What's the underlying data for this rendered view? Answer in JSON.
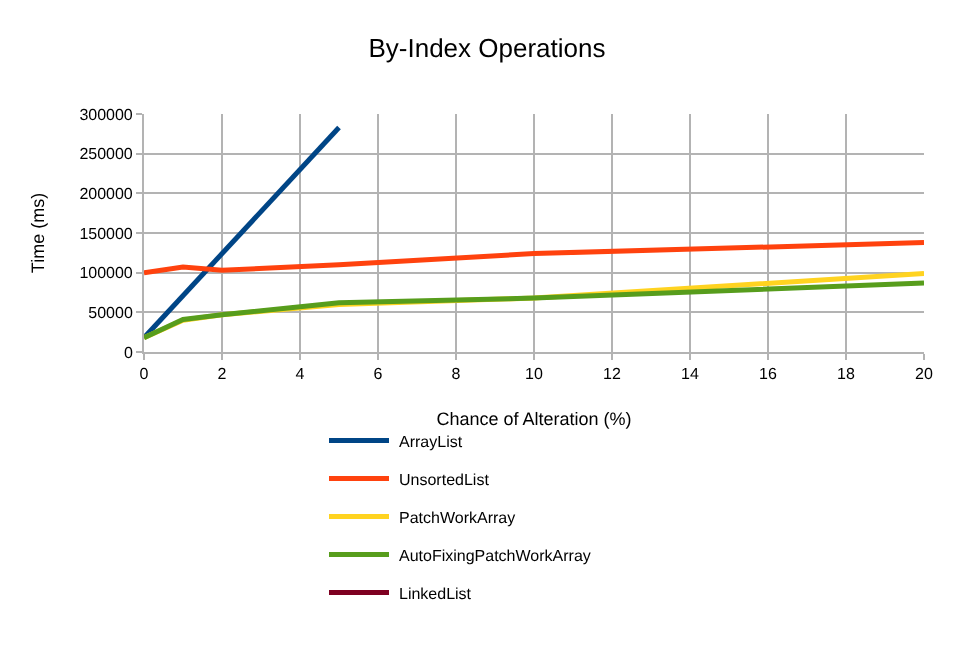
{
  "chart_data": {
    "type": "line",
    "title": "By-Index Operations",
    "xlabel": "Chance of Alteration (%)",
    "ylabel": "Time (ms)",
    "x": [
      0,
      1,
      2,
      5,
      10,
      20
    ],
    "series": [
      {
        "name": "ArrayList",
        "color": "#004586",
        "x": [
          0,
          5
        ],
        "values": [
          18000,
          283000
        ]
      },
      {
        "name": "UnsortedList",
        "color": "#ff420e",
        "values": [
          100000,
          107000,
          103000,
          110000,
          124000,
          138000
        ]
      },
      {
        "name": "PatchWorkArray",
        "color": "#ffd320",
        "values": [
          18000,
          40000,
          47000,
          60000,
          68000,
          99000
        ]
      },
      {
        "name": "AutoFixingPatchWorkArray",
        "color": "#579d1c",
        "values": [
          18000,
          41000,
          47000,
          62000,
          68000,
          87000
        ]
      },
      {
        "name": "LinkedList",
        "color": "#7e0021",
        "values": [
          null,
          null,
          null,
          null,
          null,
          null
        ]
      }
    ],
    "xlim": [
      0,
      20
    ],
    "xticks": [
      0,
      2,
      4,
      6,
      8,
      10,
      12,
      14,
      16,
      18,
      20
    ],
    "ylim": [
      0,
      300000
    ],
    "yticks": [
      0,
      50000,
      100000,
      150000,
      200000,
      250000,
      300000
    ],
    "grid": true,
    "legend": "bottom",
    "marker": "none",
    "line_style": "solid"
  }
}
